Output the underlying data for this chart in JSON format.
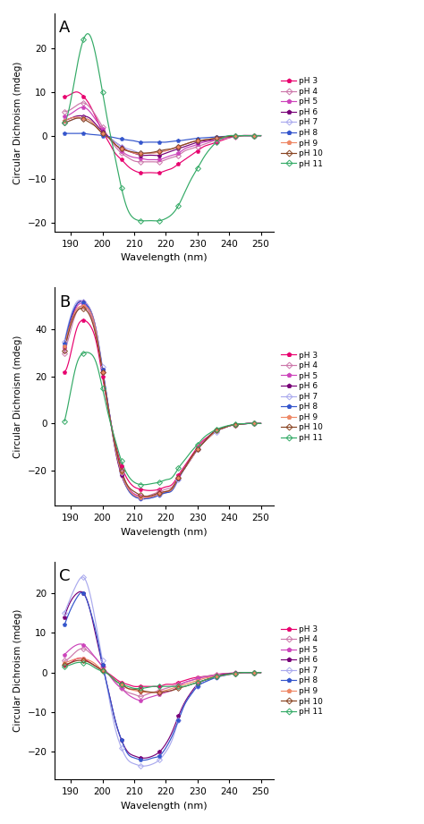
{
  "wavelengths": [
    188,
    190,
    192,
    194,
    196,
    198,
    200,
    202,
    204,
    206,
    208,
    210,
    212,
    214,
    216,
    218,
    220,
    222,
    224,
    226,
    228,
    230,
    232,
    234,
    236,
    238,
    240,
    242,
    244,
    246,
    248,
    250
  ],
  "pH_order": [
    "pH 3",
    "pH 4",
    "pH 5",
    "pH 6",
    "pH 7",
    "pH 8",
    "pH 9",
    "pH 10",
    "pH 11"
  ],
  "colors": {
    "pH 3": "#e8006e",
    "pH 4": "#cc77aa",
    "pH 5": "#cc44bb",
    "pH 6": "#770077",
    "pH 7": "#aaaaee",
    "pH 8": "#3355cc",
    "pH 9": "#ee8866",
    "pH 10": "#884422",
    "pH 11": "#33aa66"
  },
  "markers": {
    "pH 3": "p",
    "pH 4": "D",
    "pH 5": "p",
    "pH 6": "p",
    "pH 7": "D",
    "pH 8": "p",
    "pH 9": "p",
    "pH 10": "D",
    "pH 11": "D"
  },
  "markerfacecolors": {
    "pH 3": "#e8006e",
    "pH 4": "none",
    "pH 5": "#cc44bb",
    "pH 6": "#770077",
    "pH 7": "none",
    "pH 8": "#3355cc",
    "pH 9": "#ee8866",
    "pH 10": "none",
    "pH 11": "none"
  },
  "panel_A": {
    "title": "A",
    "ylim": [
      -22,
      28
    ],
    "yticks": [
      -20,
      -10,
      0,
      10,
      20
    ],
    "series": {
      "pH 3": [
        9.0,
        9.5,
        10.0,
        9.0,
        7.0,
        4.0,
        1.0,
        -1.5,
        -4.0,
        -5.5,
        -7.0,
        -8.0,
        -8.5,
        -8.5,
        -8.5,
        -8.5,
        -8.0,
        -7.5,
        -6.5,
        -5.5,
        -4.5,
        -3.5,
        -2.5,
        -2.0,
        -1.5,
        -1.0,
        -0.5,
        -0.2,
        0.0,
        0.0,
        0.0,
        0.0
      ],
      "pH 4": [
        5.5,
        6.0,
        7.0,
        7.5,
        6.5,
        4.5,
        2.0,
        -0.5,
        -2.5,
        -4.0,
        -5.0,
        -5.8,
        -6.0,
        -6.0,
        -6.0,
        -6.0,
        -5.5,
        -5.0,
        -4.5,
        -3.5,
        -3.0,
        -2.5,
        -2.0,
        -1.5,
        -1.0,
        -0.8,
        -0.5,
        -0.2,
        0.0,
        0.0,
        0.0,
        0.0
      ],
      "pH 5": [
        4.5,
        5.0,
        6.0,
        6.5,
        5.5,
        3.5,
        1.5,
        -0.5,
        -2.0,
        -3.5,
        -4.5,
        -5.0,
        -5.2,
        -5.5,
        -5.5,
        -5.5,
        -5.0,
        -4.5,
        -4.0,
        -3.0,
        -2.5,
        -2.0,
        -1.5,
        -1.2,
        -0.8,
        -0.5,
        -0.3,
        -0.1,
        0.0,
        0.0,
        0.0,
        0.0
      ],
      "pH 6": [
        3.5,
        4.0,
        4.5,
        4.5,
        4.0,
        2.5,
        1.0,
        -0.3,
        -1.5,
        -2.5,
        -3.5,
        -4.0,
        -4.5,
        -4.5,
        -4.5,
        -4.5,
        -4.0,
        -3.5,
        -3.0,
        -2.5,
        -2.0,
        -1.5,
        -1.2,
        -1.0,
        -0.8,
        -0.5,
        -0.3,
        -0.1,
        0.0,
        0.0,
        0.0,
        0.0
      ],
      "pH 7": [
        3.0,
        3.5,
        4.0,
        4.0,
        3.5,
        2.0,
        0.5,
        -0.5,
        -1.5,
        -2.5,
        -3.0,
        -3.5,
        -4.0,
        -4.0,
        -4.0,
        -3.5,
        -3.5,
        -3.0,
        -2.5,
        -2.0,
        -1.5,
        -1.2,
        -1.0,
        -0.8,
        -0.5,
        -0.3,
        -0.2,
        -0.1,
        0.0,
        0.0,
        0.0,
        0.0
      ],
      "pH 8": [
        0.5,
        0.5,
        0.5,
        0.5,
        0.3,
        0.2,
        0.0,
        -0.2,
        -0.5,
        -0.8,
        -1.0,
        -1.2,
        -1.5,
        -1.5,
        -1.5,
        -1.5,
        -1.5,
        -1.3,
        -1.2,
        -1.0,
        -0.8,
        -0.6,
        -0.5,
        -0.4,
        -0.3,
        -0.2,
        -0.1,
        0.0,
        0.0,
        0.0,
        0.0,
        0.0
      ],
      "pH 9": [
        3.5,
        4.0,
        4.2,
        4.0,
        3.5,
        2.0,
        0.5,
        -0.5,
        -2.0,
        -3.0,
        -3.5,
        -4.0,
        -4.2,
        -4.0,
        -4.0,
        -3.8,
        -3.5,
        -3.0,
        -2.5,
        -2.0,
        -1.5,
        -1.2,
        -1.0,
        -0.8,
        -0.6,
        -0.4,
        -0.2,
        -0.1,
        0.0,
        0.0,
        0.0,
        0.0
      ],
      "pH 10": [
        3.0,
        3.5,
        4.0,
        3.8,
        3.0,
        2.0,
        0.5,
        -0.5,
        -2.0,
        -3.0,
        -3.5,
        -3.8,
        -4.0,
        -4.0,
        -3.8,
        -3.5,
        -3.2,
        -3.0,
        -2.5,
        -2.0,
        -1.5,
        -1.2,
        -1.0,
        -0.8,
        -0.5,
        -0.3,
        -0.2,
        -0.1,
        0.0,
        0.0,
        0.0,
        0.0
      ],
      "pH 11": [
        3.0,
        8.0,
        16.0,
        22.0,
        23.0,
        18.0,
        10.0,
        2.0,
        -5.0,
        -12.0,
        -17.0,
        -19.0,
        -19.5,
        -19.5,
        -19.5,
        -19.5,
        -19.0,
        -18.0,
        -16.0,
        -13.0,
        -10.0,
        -7.5,
        -5.0,
        -3.0,
        -1.5,
        -0.5,
        0.0,
        0.0,
        0.0,
        0.0,
        0.0,
        0.0
      ]
    }
  },
  "panel_B": {
    "title": "B",
    "ylim": [
      -35,
      58
    ],
    "yticks": [
      -20,
      0,
      20,
      40
    ],
    "series": {
      "pH 3": [
        22.0,
        30.0,
        41.0,
        44.0,
        42.0,
        35.0,
        20.0,
        5.0,
        -8.0,
        -18.0,
        -24.0,
        -27.0,
        -28.0,
        -28.5,
        -28.5,
        -28.0,
        -27.0,
        -26.0,
        -22.0,
        -18.0,
        -14.0,
        -10.0,
        -7.0,
        -5.0,
        -3.0,
        -2.0,
        -1.0,
        -0.5,
        -0.2,
        0.0,
        0.0,
        0.0
      ],
      "pH 4": [
        30.0,
        40.0,
        48.0,
        50.0,
        47.0,
        38.0,
        22.0,
        5.0,
        -10.0,
        -20.0,
        -27.0,
        -30.0,
        -31.0,
        -31.0,
        -30.0,
        -29.0,
        -28.0,
        -27.0,
        -23.0,
        -19.0,
        -15.0,
        -11.0,
        -8.0,
        -5.0,
        -3.0,
        -2.0,
        -1.0,
        -0.5,
        -0.2,
        0.0,
        0.0,
        0.0
      ],
      "pH 5": [
        32.0,
        43.0,
        50.0,
        51.0,
        48.0,
        39.0,
        23.0,
        6.0,
        -10.0,
        -21.0,
        -27.0,
        -30.0,
        -31.0,
        -31.5,
        -31.0,
        -30.0,
        -29.0,
        -28.0,
        -23.0,
        -19.0,
        -15.0,
        -11.0,
        -8.0,
        -5.0,
        -3.0,
        -2.0,
        -1.0,
        -0.5,
        -0.2,
        0.0,
        0.0,
        0.0
      ],
      "pH 6": [
        33.0,
        44.0,
        51.0,
        52.0,
        49.0,
        40.0,
        23.0,
        6.0,
        -11.0,
        -22.0,
        -28.0,
        -31.0,
        -32.0,
        -32.0,
        -31.0,
        -30.0,
        -29.5,
        -28.0,
        -23.5,
        -19.0,
        -15.0,
        -11.0,
        -8.0,
        -5.0,
        -3.0,
        -2.0,
        -1.0,
        -0.5,
        -0.2,
        0.0,
        0.0,
        0.0
      ],
      "pH 7": [
        35.0,
        46.0,
        52.0,
        52.0,
        49.0,
        40.0,
        24.0,
        6.0,
        -10.0,
        -21.0,
        -28.0,
        -31.0,
        -32.0,
        -32.0,
        -31.5,
        -30.5,
        -29.5,
        -28.5,
        -24.0,
        -19.0,
        -15.0,
        -11.0,
        -8.0,
        -5.5,
        -3.5,
        -2.0,
        -1.0,
        -0.5,
        -0.2,
        0.0,
        0.0,
        0.0
      ],
      "pH 8": [
        34.0,
        45.0,
        51.0,
        51.5,
        48.5,
        39.5,
        23.0,
        6.0,
        -10.0,
        -21.0,
        -28.0,
        -31.0,
        -32.0,
        -32.0,
        -31.5,
        -30.5,
        -29.5,
        -28.5,
        -23.5,
        -19.0,
        -15.0,
        -11.0,
        -8.0,
        -5.5,
        -3.0,
        -2.0,
        -1.0,
        -0.5,
        -0.2,
        0.0,
        0.0,
        0.0
      ],
      "pH 9": [
        33.0,
        43.0,
        49.0,
        50.0,
        48.0,
        39.0,
        22.0,
        5.5,
        -10.0,
        -21.0,
        -27.5,
        -30.5,
        -31.5,
        -31.5,
        -31.0,
        -30.0,
        -29.0,
        -28.0,
        -23.0,
        -19.0,
        -15.0,
        -11.0,
        -8.0,
        -5.5,
        -3.0,
        -2.0,
        -1.0,
        -0.5,
        -0.2,
        0.0,
        0.0,
        0.0
      ],
      "pH 10": [
        31.0,
        42.0,
        48.0,
        49.0,
        46.0,
        37.0,
        22.0,
        5.0,
        -9.0,
        -20.0,
        -26.5,
        -29.0,
        -30.5,
        -31.0,
        -30.5,
        -29.5,
        -29.0,
        -27.5,
        -23.0,
        -19.0,
        -14.5,
        -11.0,
        -8.0,
        -5.0,
        -3.0,
        -2.0,
        -1.0,
        -0.5,
        -0.2,
        0.0,
        0.0,
        0.0
      ],
      "pH 11": [
        1.0,
        14.0,
        26.0,
        30.0,
        30.0,
        26.0,
        15.0,
        3.0,
        -7.0,
        -16.0,
        -22.0,
        -25.0,
        -26.0,
        -26.0,
        -25.5,
        -25.0,
        -24.0,
        -23.0,
        -19.0,
        -15.5,
        -12.0,
        -9.0,
        -6.0,
        -4.0,
        -2.5,
        -1.5,
        -0.8,
        -0.3,
        -0.1,
        0.0,
        0.0,
        0.0
      ]
    }
  },
  "panel_C": {
    "title": "C",
    "ylim": [
      -27,
      28
    ],
    "yticks": [
      -20,
      -10,
      0,
      10,
      20
    ],
    "series": {
      "pH 3": [
        2.0,
        2.5,
        3.5,
        3.5,
        2.5,
        1.5,
        0.5,
        -0.3,
        -1.5,
        -2.5,
        -3.0,
        -3.5,
        -3.5,
        -3.5,
        -3.5,
        -3.5,
        -3.0,
        -3.0,
        -2.5,
        -2.0,
        -1.5,
        -1.2,
        -1.0,
        -0.8,
        -0.5,
        -0.3,
        -0.2,
        -0.1,
        0.0,
        0.0,
        0.0,
        0.0
      ],
      "pH 4": [
        3.0,
        4.0,
        5.5,
        6.0,
        5.0,
        3.5,
        1.5,
        -0.5,
        -2.5,
        -4.0,
        -5.0,
        -5.5,
        -6.0,
        -5.5,
        -5.0,
        -4.5,
        -4.0,
        -3.5,
        -3.0,
        -2.5,
        -2.0,
        -1.5,
        -1.0,
        -0.8,
        -0.5,
        -0.3,
        -0.2,
        -0.1,
        0.0,
        0.0,
        0.0,
        0.0
      ],
      "pH 5": [
        4.5,
        6.0,
        7.0,
        7.0,
        5.5,
        3.5,
        1.5,
        -0.5,
        -2.5,
        -4.0,
        -5.5,
        -6.5,
        -7.0,
        -6.5,
        -6.0,
        -5.5,
        -5.0,
        -4.5,
        -3.5,
        -2.5,
        -2.0,
        -1.5,
        -1.2,
        -1.0,
        -0.7,
        -0.5,
        -0.3,
        -0.1,
        0.0,
        0.0,
        0.0,
        0.0
      ],
      "pH 6": [
        14.0,
        18.0,
        20.0,
        20.0,
        16.0,
        9.0,
        2.0,
        -5.0,
        -12.0,
        -17.0,
        -20.0,
        -21.0,
        -21.5,
        -21.5,
        -21.0,
        -20.0,
        -18.0,
        -15.0,
        -11.0,
        -7.5,
        -5.0,
        -3.0,
        -2.0,
        -1.5,
        -1.0,
        -0.5,
        -0.3,
        -0.1,
        0.0,
        0.0,
        0.0,
        0.0
      ],
      "pH 7": [
        15.0,
        19.0,
        22.5,
        24.0,
        20.0,
        12.0,
        3.0,
        -6.0,
        -14.0,
        -19.0,
        -22.0,
        -23.0,
        -23.5,
        -23.5,
        -23.0,
        -22.0,
        -20.0,
        -17.0,
        -12.0,
        -8.0,
        -5.5,
        -3.5,
        -2.5,
        -1.8,
        -1.2,
        -0.8,
        -0.5,
        -0.2,
        0.0,
        0.0,
        0.0,
        0.0
      ],
      "pH 8": [
        12.0,
        16.0,
        19.0,
        20.0,
        16.0,
        10.0,
        2.0,
        -5.0,
        -12.0,
        -17.0,
        -20.5,
        -21.5,
        -22.0,
        -22.0,
        -21.5,
        -21.0,
        -19.0,
        -16.0,
        -12.0,
        -8.0,
        -5.5,
        -3.5,
        -2.5,
        -1.8,
        -1.2,
        -0.8,
        -0.5,
        -0.2,
        0.0,
        0.0,
        0.0,
        0.0
      ],
      "pH 9": [
        2.5,
        3.0,
        3.5,
        3.5,
        3.0,
        2.0,
        0.5,
        -0.5,
        -2.0,
        -3.0,
        -4.0,
        -4.5,
        -4.8,
        -5.0,
        -5.0,
        -4.8,
        -4.5,
        -4.0,
        -3.5,
        -3.0,
        -2.5,
        -2.0,
        -1.5,
        -1.2,
        -1.0,
        -0.7,
        -0.5,
        -0.2,
        0.0,
        0.0,
        0.0,
        0.0
      ],
      "pH 10": [
        2.0,
        2.5,
        3.0,
        3.0,
        2.5,
        1.5,
        0.5,
        -0.5,
        -2.0,
        -3.0,
        -4.0,
        -4.2,
        -4.5,
        -4.8,
        -5.0,
        -5.0,
        -4.8,
        -4.5,
        -4.0,
        -3.5,
        -3.0,
        -2.5,
        -2.0,
        -1.5,
        -1.0,
        -0.7,
        -0.4,
        -0.2,
        0.0,
        0.0,
        0.0,
        0.0
      ],
      "pH 11": [
        1.5,
        2.0,
        2.5,
        2.5,
        2.0,
        1.0,
        0.3,
        -0.5,
        -2.0,
        -3.0,
        -3.5,
        -4.0,
        -4.0,
        -3.8,
        -3.5,
        -3.5,
        -3.5,
        -3.5,
        -3.5,
        -3.5,
        -3.0,
        -2.5,
        -2.0,
        -1.5,
        -1.0,
        -0.7,
        -0.4,
        -0.2,
        0.0,
        0.0,
        0.0,
        0.0
      ]
    }
  }
}
